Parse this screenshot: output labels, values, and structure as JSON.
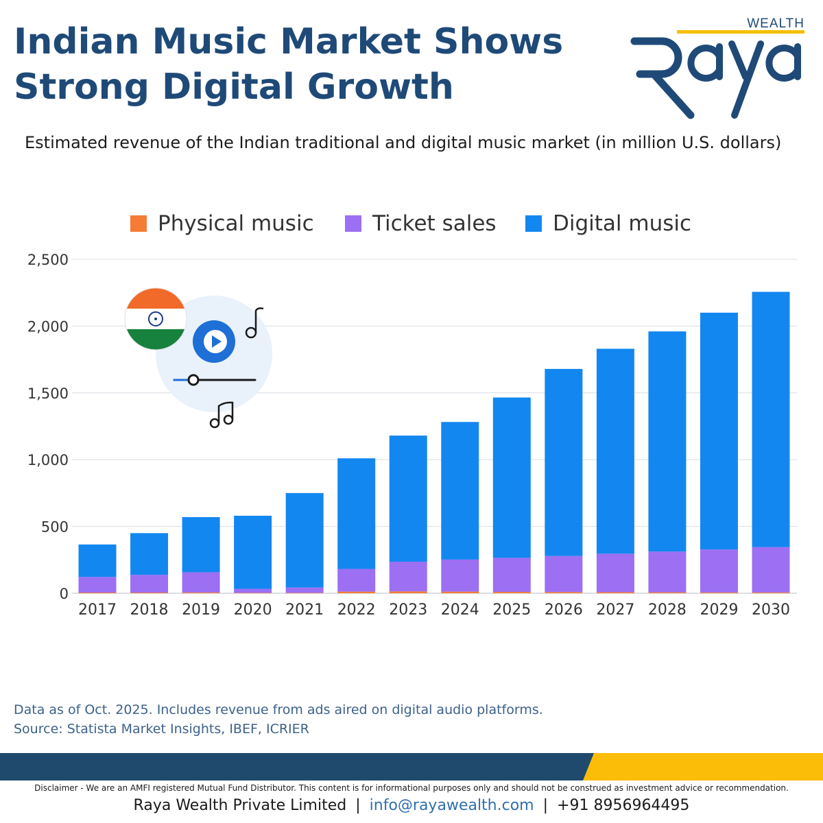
{
  "header": {
    "title_line1": "Indian Music Market Shows",
    "title_line2": "Strong Digital Growth"
  },
  "brand": {
    "name": "Raya",
    "tagline": "WEALTH",
    "color_navy": "#1f4a78",
    "color_yellow": "#f5c000"
  },
  "chart_data": {
    "type": "bar",
    "stacked": true,
    "title": "Estimated revenue of the Indian traditional and digital music market (in million U.S. dollars)",
    "categories": [
      "2017",
      "2018",
      "2019",
      "2020",
      "2021",
      "2022",
      "2023",
      "2024",
      "2025",
      "2026",
      "2027",
      "2028",
      "2029",
      "2030"
    ],
    "series": [
      {
        "name": "Physical music",
        "color": "#f47c35",
        "values": [
          5,
          5,
          6,
          3,
          3,
          12,
          14,
          12,
          10,
          9,
          8,
          7,
          6,
          6
        ]
      },
      {
        "name": "Ticket sales",
        "color": "#9c6ff3",
        "values": [
          117,
          133,
          151,
          30,
          40,
          170,
          222,
          240,
          255,
          270,
          288,
          305,
          322,
          340
        ]
      },
      {
        "name": "Digital music",
        "color": "#1387f0",
        "values": [
          243,
          312,
          413,
          547,
          707,
          828,
          944,
          1030,
          1200,
          1400,
          1534,
          1648,
          1772,
          1910
        ]
      }
    ],
    "ylim": [
      0,
      2500
    ],
    "yticks": [
      0,
      500,
      1000,
      1500,
      2000,
      2500
    ],
    "ytick_labels": [
      "0",
      "500",
      "1,000",
      "1,500",
      "2,000",
      "2,500"
    ],
    "grid": true,
    "legend_position": "top"
  },
  "decor": {
    "flag_icon": "india-flag-icon",
    "play_icon": "play-button-icon",
    "music_note_icon": "music-note-icon",
    "double_note_icon": "double-music-note-icon",
    "slider_icon": "audio-slider-icon"
  },
  "footer_notes": {
    "data_note": "Data as of Oct. 2025. Includes revenue from ads aired on digital audio platforms.",
    "source": "Source: Statista Market Insights, IBEF, ICRIER"
  },
  "footer": {
    "disclaimer": "Disclaimer - We are an AMFI registered Mutual Fund Distributor. This content is for informational purposes only and should not be construed as investment advice or recommendation.",
    "company": "Raya Wealth Private Limited",
    "separator": "|",
    "email": "info@rayawealth.com",
    "phone": "+91 8956964495",
    "band_navy": "#1f4a6e",
    "band_yellow": "#fbbd08"
  }
}
